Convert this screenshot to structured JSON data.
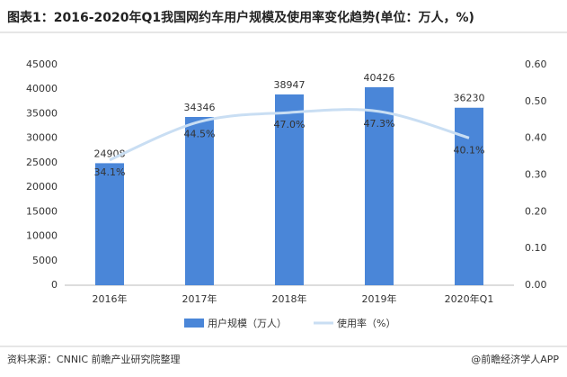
{
  "chart_data": {
    "type": "bar-line",
    "title": "图表1：2016-2020年Q1我国网约车用户规模及使用率变化趋势(单位：万人，%)",
    "categories": [
      "2016年",
      "2017年",
      "2018年",
      "2019年",
      "2020年Q1"
    ],
    "series": [
      {
        "name": "用户规模（万人）",
        "type": "bar",
        "color": "#4a86d8",
        "values": [
          24908,
          34346,
          38947,
          40426,
          36230
        ]
      },
      {
        "name": "使用率（%）",
        "type": "line",
        "color": "#c9def3",
        "axis": "y2",
        "values": [
          0.341,
          0.445,
          0.47,
          0.473,
          0.401
        ],
        "value_labels": [
          "34.1%",
          "44.5%",
          "47.0%",
          "47.3%",
          "40.1%"
        ]
      }
    ],
    "ylim": [
      0,
      45000
    ],
    "yticks": [
      0,
      5000,
      10000,
      15000,
      20000,
      25000,
      30000,
      35000,
      40000,
      45000
    ],
    "y2lim": [
      0,
      0.6
    ],
    "y2ticks": [
      {
        "value": 0,
        "label": "0.00"
      },
      {
        "value": 0.1,
        "label": "0.10"
      },
      {
        "value": 0.2,
        "label": "0.20"
      },
      {
        "value": 0.3,
        "label": "0.30"
      },
      {
        "value": 0.4,
        "label": "0.40"
      },
      {
        "value": 0.5,
        "label": "0.50"
      },
      {
        "value": 0.6,
        "label": "0.60"
      }
    ],
    "legend": "bottom",
    "source": "资料来源：CNNIC 前瞻产业研究院整理",
    "credit": "@前瞻经济学人APP"
  }
}
